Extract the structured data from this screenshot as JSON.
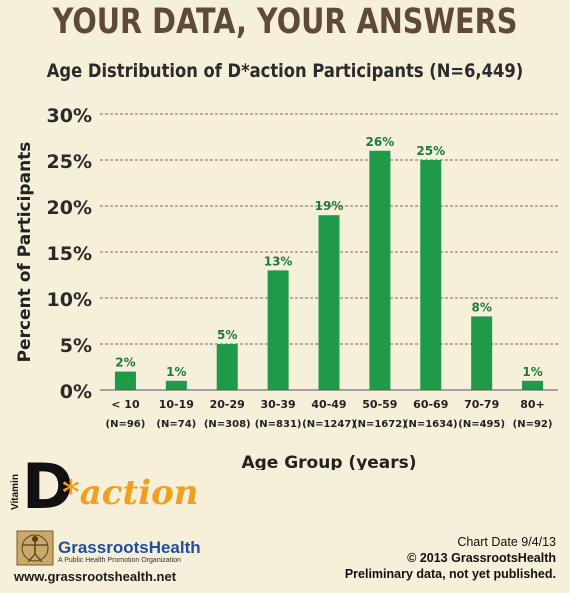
{
  "header": {
    "headline": "YOUR DATA, YOUR ANSWERS"
  },
  "chart_data": {
    "type": "bar",
    "title": "Age Distribution of D*action Participants (N=6,449)",
    "xlabel": "Age Group (years)",
    "ylabel": "Percent of Participants",
    "ylim": [
      0,
      30
    ],
    "yticks": [
      "0%",
      "5%",
      "10%",
      "15%",
      "20%",
      "25%",
      "30%"
    ],
    "grid": true,
    "categories": [
      "< 10",
      "10-19",
      "20-29",
      "30-39",
      "40-49",
      "50-59",
      "60-69",
      "70-79",
      "80+"
    ],
    "counts": [
      "(N=96)",
      "(N=74)",
      "(N=308)",
      "(N=831)",
      "(N=1247)",
      "(N=1672)",
      "(N=1634)",
      "(N=495)",
      "(N=92)"
    ],
    "values": [
      2,
      1,
      5,
      13,
      19,
      26,
      25,
      8,
      1
    ],
    "data_labels": [
      "2%",
      "1%",
      "5%",
      "13%",
      "19%",
      "26%",
      "25%",
      "8%",
      "1%"
    ],
    "bar_color": "#1f9a48",
    "label_color": "#1e7a3a"
  },
  "logo": {
    "vitamin": "Vitamin",
    "d": "D",
    "action": "*action"
  },
  "footer": {
    "org_name": "GrassrootsHealth",
    "org_tagline": "A Public Health Promotion Organization",
    "url": "www.grassrootshealth.net",
    "chart_date": "Chart Date 9/4/13",
    "copyright": "© 2013 GrassrootsHealth",
    "note": "Preliminary data, not yet published."
  }
}
